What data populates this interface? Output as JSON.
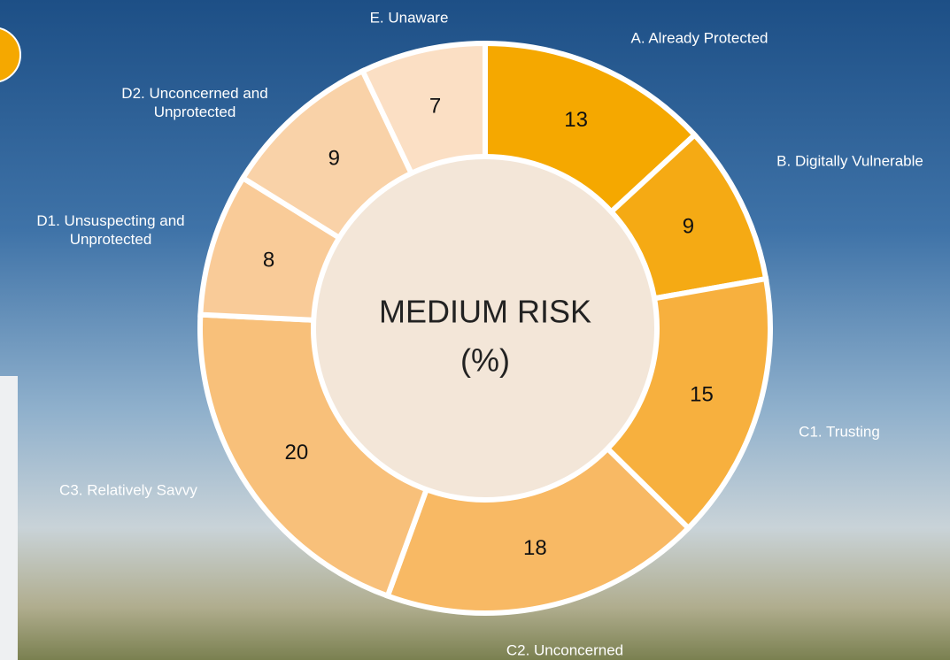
{
  "chart_data": {
    "type": "donut",
    "title": "MEDIUM RISK",
    "subtitle": "(%)",
    "categories": [
      "A. Already Protected",
      "B. Digitally Vulnerable",
      "C1. Trusting",
      "C2. Unconcerned",
      "C3. Relatively Savvy",
      "D1. Unsuspecting and Unprotected",
      "D2. Unconcerned and Unprotected",
      "E. Unaware"
    ],
    "values": [
      13,
      9,
      15,
      18,
      20,
      8,
      9,
      7
    ],
    "colors": [
      "#f5a800",
      "#f5aa14",
      "#f7b03e",
      "#f8b964",
      "#f8c07a",
      "#f9cb98",
      "#f9d2a8",
      "#fbdfc4"
    ]
  }
}
